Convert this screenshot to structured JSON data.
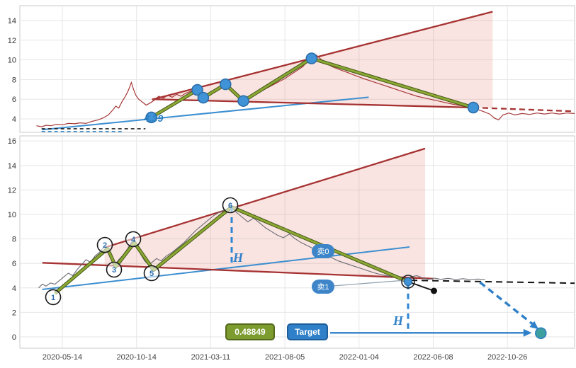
{
  "chart_data": [
    {
      "type": "line",
      "name": "upper-price-panel",
      "title": "",
      "xlabel": "",
      "ylabel": "",
      "ylim": [
        2.6,
        15.5
      ],
      "yticks": [
        4,
        6,
        8,
        10,
        12,
        14
      ],
      "grid": true,
      "price_color": "#a63939",
      "price": [
        [
          -0.35,
          3.3
        ],
        [
          -0.28,
          3.2
        ],
        [
          -0.22,
          3.35
        ],
        [
          -0.15,
          3.3
        ],
        [
          -0.08,
          3.45
        ],
        [
          0.0,
          3.4
        ],
        [
          0.08,
          3.55
        ],
        [
          0.16,
          3.5
        ],
        [
          0.24,
          3.6
        ],
        [
          0.32,
          3.55
        ],
        [
          0.4,
          3.75
        ],
        [
          0.48,
          3.9
        ],
        [
          0.55,
          4.1
        ],
        [
          0.62,
          4.4
        ],
        [
          0.68,
          4.9
        ],
        [
          0.72,
          5.3
        ],
        [
          0.76,
          5.1
        ],
        [
          0.8,
          5.7
        ],
        [
          0.85,
          6.3
        ],
        [
          0.89,
          6.9
        ],
        [
          0.93,
          7.7
        ],
        [
          0.96,
          7.0
        ],
        [
          0.99,
          6.4
        ],
        [
          1.03,
          6.0
        ],
        [
          1.08,
          5.7
        ],
        [
          1.13,
          5.4
        ],
        [
          1.18,
          5.6
        ],
        [
          1.24,
          5.9
        ],
        [
          1.3,
          6.3
        ],
        [
          1.36,
          6.1
        ],
        [
          1.42,
          6.4
        ],
        [
          1.48,
          6.2
        ],
        [
          1.54,
          6.5
        ],
        [
          1.6,
          6.3
        ],
        [
          1.66,
          6.6
        ],
        [
          1.73,
          6.8
        ],
        [
          1.82,
          7.0
        ],
        [
          1.87,
          6.5
        ],
        [
          1.92,
          6.2
        ],
        [
          1.98,
          6.4
        ],
        [
          2.05,
          6.8
        ],
        [
          2.12,
          7.1
        ],
        [
          2.2,
          7.5
        ],
        [
          2.27,
          7.0
        ],
        [
          2.34,
          6.4
        ],
        [
          2.44,
          5.9
        ],
        [
          2.52,
          6.2
        ],
        [
          2.6,
          6.5
        ],
        [
          2.7,
          6.9
        ],
        [
          2.8,
          7.3
        ],
        [
          2.9,
          7.7
        ],
        [
          3.0,
          8.1
        ],
        [
          3.08,
          8.5
        ],
        [
          3.16,
          8.9
        ],
        [
          3.24,
          9.3
        ],
        [
          3.3,
          9.8
        ],
        [
          3.36,
          10.1
        ],
        [
          3.42,
          10.5
        ],
        [
          3.48,
          10.1
        ],
        [
          3.55,
          9.7
        ],
        [
          3.64,
          9.3
        ],
        [
          3.74,
          9.0
        ],
        [
          3.85,
          8.7
        ],
        [
          3.95,
          8.4
        ],
        [
          4.06,
          8.1
        ],
        [
          4.18,
          7.8
        ],
        [
          4.3,
          7.5
        ],
        [
          4.42,
          7.2
        ],
        [
          4.54,
          6.9
        ],
        [
          4.66,
          6.6
        ],
        [
          4.78,
          6.3
        ],
        [
          4.9,
          6.1
        ],
        [
          5.02,
          5.9
        ],
        [
          5.14,
          5.7
        ],
        [
          5.26,
          5.5
        ],
        [
          5.4,
          5.3
        ],
        [
          5.54,
          5.1
        ],
        [
          5.66,
          4.8
        ],
        [
          5.76,
          4.5
        ],
        [
          5.82,
          4.1
        ],
        [
          5.88,
          3.9
        ],
        [
          5.94,
          4.4
        ],
        [
          6.02,
          4.6
        ],
        [
          6.1,
          4.4
        ],
        [
          6.2,
          4.55
        ],
        [
          6.3,
          4.45
        ],
        [
          6.4,
          4.6
        ],
        [
          6.5,
          4.5
        ],
        [
          6.6,
          4.6
        ],
        [
          6.7,
          4.5
        ],
        [
          6.8,
          4.6
        ],
        [
          6.9,
          4.55
        ],
        [
          6.95,
          4.6
        ]
      ],
      "zigzag": [
        [
          1.2,
          4.15
        ],
        [
          1.82,
          6.95
        ],
        [
          1.9,
          6.15
        ],
        [
          2.2,
          7.52
        ],
        [
          2.44,
          5.82
        ],
        [
          3.36,
          10.15
        ],
        [
          5.54,
          5.15
        ]
      ],
      "dots": [
        [
          1.2,
          4.15
        ],
        [
          1.82,
          6.95
        ],
        [
          1.9,
          6.15
        ],
        [
          2.2,
          7.52
        ],
        [
          2.44,
          5.82
        ],
        [
          3.36,
          10.15
        ],
        [
          5.54,
          5.15
        ]
      ],
      "trend_blue": [
        [
          -0.27,
          2.9
        ],
        [
          4.13,
          6.2
        ]
      ],
      "wedge_upper": [
        [
          1.21,
          5.97
        ],
        [
          5.8,
          14.9
        ]
      ],
      "wedge_lower_solid": [
        [
          1.21,
          6.0
        ],
        [
          5.54,
          5.15
        ]
      ],
      "wedge_lower_dash": [
        [
          5.54,
          5.15
        ],
        [
          6.9,
          4.77
        ]
      ],
      "wedge_fill": [
        [
          1.21,
          5.97
        ],
        [
          5.8,
          14.9
        ],
        [
          5.8,
          5.1
        ]
      ],
      "dash_black": [
        [
          -0.28,
          3.0
        ],
        [
          1.12,
          3.0
        ]
      ],
      "dash_blue": [
        [
          -0.28,
          2.72
        ],
        [
          0.8,
          2.72
        ]
      ]
    },
    {
      "type": "line",
      "name": "lower-analysis-panel",
      "title": "",
      "xlabel": "",
      "ylabel": "",
      "ylim": [
        -0.9,
        16.4
      ],
      "yticks": [
        0,
        2,
        4,
        6,
        8,
        10,
        12,
        14,
        16
      ],
      "grid": true,
      "x_tick_labels": [
        "2020-05-14",
        "2020-10-14",
        "2021-03-11",
        "2021-08-05",
        "2022-01-04",
        "2022-06-08",
        "2022-10-26"
      ],
      "price_color": "#6b6b74",
      "price": [
        [
          -0.32,
          4.0
        ],
        [
          -0.27,
          4.3
        ],
        [
          -0.22,
          4.15
        ],
        [
          -0.16,
          4.4
        ],
        [
          -0.1,
          4.3
        ],
        [
          -0.04,
          4.6
        ],
        [
          0.02,
          4.9
        ],
        [
          0.08,
          5.2
        ],
        [
          0.14,
          5.0
        ],
        [
          0.2,
          5.5
        ],
        [
          0.26,
          5.9
        ],
        [
          0.32,
          6.3
        ],
        [
          0.38,
          6.1
        ],
        [
          0.44,
          6.6
        ],
        [
          0.5,
          6.9
        ],
        [
          0.54,
          7.2
        ],
        [
          0.58,
          7.35
        ],
        [
          0.63,
          6.8
        ],
        [
          0.68,
          6.3
        ],
        [
          0.72,
          6.0
        ],
        [
          0.76,
          6.3
        ],
        [
          0.82,
          6.7
        ],
        [
          0.88,
          7.2
        ],
        [
          0.93,
          7.7
        ],
        [
          0.97,
          7.9
        ],
        [
          1.01,
          7.3
        ],
        [
          1.06,
          6.7
        ],
        [
          1.11,
          6.2
        ],
        [
          1.16,
          5.9
        ],
        [
          1.21,
          6.1
        ],
        [
          1.27,
          6.4
        ],
        [
          1.33,
          6.2
        ],
        [
          1.4,
          6.6
        ],
        [
          1.48,
          6.9
        ],
        [
          1.56,
          7.3
        ],
        [
          1.64,
          7.7
        ],
        [
          1.72,
          8.2
        ],
        [
          1.8,
          8.7
        ],
        [
          1.88,
          9.1
        ],
        [
          1.96,
          9.5
        ],
        [
          2.04,
          9.9
        ],
        [
          2.12,
          10.2
        ],
        [
          2.2,
          10.4
        ],
        [
          2.28,
          10.6
        ],
        [
          2.34,
          10.2
        ],
        [
          2.42,
          9.8
        ],
        [
          2.5,
          9.4
        ],
        [
          2.58,
          9.7
        ],
        [
          2.66,
          9.3
        ],
        [
          2.74,
          8.9
        ],
        [
          2.82,
          8.6
        ],
        [
          2.9,
          8.3
        ],
        [
          2.98,
          8.1
        ],
        [
          3.06,
          8.4
        ],
        [
          3.14,
          8.0
        ],
        [
          3.22,
          7.7
        ],
        [
          3.32,
          7.4
        ],
        [
          3.42,
          7.1
        ],
        [
          3.52,
          6.8
        ],
        [
          3.62,
          6.5
        ],
        [
          3.72,
          6.2
        ],
        [
          3.82,
          6.0
        ],
        [
          3.92,
          5.8
        ],
        [
          4.02,
          5.6
        ],
        [
          4.12,
          5.4
        ],
        [
          4.22,
          5.2
        ],
        [
          4.32,
          5.05
        ],
        [
          4.42,
          4.95
        ],
        [
          4.52,
          4.85
        ],
        [
          4.62,
          4.7
        ],
        [
          4.7,
          4.9
        ],
        [
          4.78,
          5.0
        ],
        [
          4.86,
          4.8
        ],
        [
          4.94,
          4.7
        ],
        [
          5.02,
          4.8
        ],
        [
          5.1,
          4.7
        ],
        [
          5.2,
          4.78
        ],
        [
          5.3,
          4.68
        ],
        [
          5.4,
          4.75
        ],
        [
          5.5,
          4.68
        ],
        [
          5.6,
          4.72
        ],
        [
          5.7,
          4.68
        ]
      ],
      "zigzag": [
        [
          -0.1,
          3.55
        ],
        [
          0.61,
          7.2
        ],
        [
          0.72,
          5.72
        ],
        [
          0.97,
          7.7
        ],
        [
          1.23,
          5.45
        ],
        [
          2.28,
          10.6
        ],
        [
          4.66,
          4.5
        ]
      ],
      "waves": [
        {
          "label": "1",
          "t": -0.124,
          "v": 3.24
        },
        {
          "label": "2",
          "t": 0.573,
          "v": 7.51
        },
        {
          "label": "3",
          "t": 0.697,
          "v": 5.49
        },
        {
          "label": "4",
          "t": 0.955,
          "v": 7.98
        },
        {
          "label": "5",
          "t": 1.203,
          "v": 5.2
        },
        {
          "label": "6",
          "t": 2.264,
          "v": 10.75
        }
      ],
      "trend_blue": [
        [
          -0.27,
          3.87
        ],
        [
          4.68,
          7.34
        ]
      ],
      "wedge_upper": [
        [
          0.57,
          7.3
        ],
        [
          4.89,
          15.38
        ]
      ],
      "wedge_lower": [
        [
          -0.27,
          6.05
        ],
        [
          5.0,
          4.75
        ]
      ],
      "wedge_fill": [
        [
          0.57,
          7.3
        ],
        [
          4.89,
          15.38
        ],
        [
          4.89,
          4.78
        ],
        [
          0.57,
          5.84
        ]
      ],
      "black_dash": [
        [
          4.7,
          4.62
        ],
        [
          6.92,
          4.38
        ]
      ],
      "vlines": [
        {
          "t": 2.283,
          "v1": 10.58,
          "v2": 5.6
        },
        {
          "t": 4.661,
          "v1": 4.35,
          "v2": 0.45
        }
      ],
      "connector": [
        [
          3.65,
          4.16
        ],
        [
          4.613,
          4.62
        ]
      ],
      "black_seg": [
        [
          4.661,
          4.51
        ],
        [
          5.01,
          3.76
        ]
      ],
      "projection": [
        [
          5.63,
          4.45
        ],
        [
          6.38,
          0.85
        ]
      ],
      "target_arrow": [
        [
          3.61,
          0.33
        ],
        [
          6.27,
          0.33
        ]
      ],
      "sell_point": {
        "t": 4.661,
        "v": 4.51
      },
      "target_dot": {
        "t": 6.45,
        "v": 0.3
      }
    }
  ],
  "annotations": {
    "pivot_label": {
      "text": "4.39",
      "color": "#2d7fc0"
    },
    "badges": [
      {
        "text": "卖0"
      },
      {
        "text": "卖1"
      }
    ],
    "h_labels": [
      {
        "text": "H"
      },
      {
        "text": "H"
      }
    ],
    "value_box": {
      "text": "0.48849",
      "color": "#7d9c30"
    },
    "target_box": {
      "text": "Target",
      "color": "#2f80c8"
    }
  }
}
